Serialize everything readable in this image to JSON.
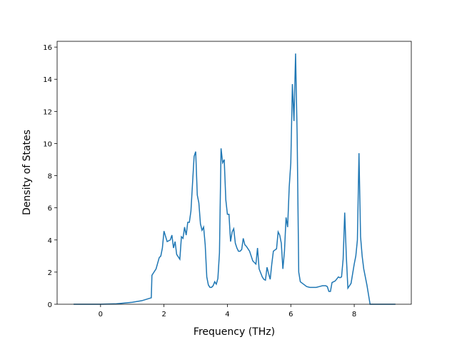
{
  "chart_data": {
    "type": "line",
    "xlabel": "Frequency (THz)",
    "ylabel": "Density of States",
    "color": "#1f77b4",
    "x": [
      -0.85,
      0,
      0.5,
      1.0,
      1.3,
      1.6,
      1.62,
      1.75,
      1.85,
      1.9,
      1.95,
      2.0,
      2.1,
      2.2,
      2.25,
      2.3,
      2.35,
      2.4,
      2.5,
      2.55,
      2.6,
      2.65,
      2.7,
      2.75,
      2.8,
      2.85,
      2.9,
      2.95,
      3.0,
      3.05,
      3.1,
      3.15,
      3.2,
      3.25,
      3.3,
      3.35,
      3.4,
      3.45,
      3.5,
      3.55,
      3.6,
      3.65,
      3.7,
      3.75,
      3.8,
      3.85,
      3.9,
      3.95,
      4.0,
      4.05,
      4.1,
      4.15,
      4.2,
      4.25,
      4.3,
      4.35,
      4.4,
      4.45,
      4.5,
      4.55,
      4.6,
      4.7,
      4.8,
      4.9,
      4.95,
      5.0,
      5.1,
      5.15,
      5.2,
      5.25,
      5.3,
      5.35,
      5.4,
      5.45,
      5.55,
      5.6,
      5.65,
      5.7,
      5.75,
      5.8,
      5.85,
      5.9,
      5.95,
      6.0,
      6.05,
      6.1,
      6.15,
      6.2,
      6.25,
      6.3,
      6.4,
      6.5,
      6.6,
      6.8,
      6.9,
      7.0,
      7.1,
      7.15,
      7.2,
      7.25,
      7.3,
      7.4,
      7.5,
      7.55,
      7.6,
      7.65,
      7.7,
      7.75,
      7.8,
      7.9,
      8.0,
      8.05,
      8.1,
      8.15,
      8.2,
      8.25,
      8.3,
      8.4,
      8.5,
      9.3
    ],
    "values": [
      0,
      0,
      0.03,
      0.12,
      0.22,
      0.4,
      1.8,
      2.2,
      2.9,
      3.0,
      3.5,
      4.55,
      3.9,
      4.0,
      4.3,
      3.5,
      3.9,
      3.1,
      2.8,
      4.2,
      4.1,
      4.8,
      4.3,
      5.1,
      5.1,
      5.8,
      7.5,
      9.2,
      9.5,
      6.8,
      6.3,
      5.0,
      4.6,
      4.8,
      3.7,
      1.7,
      1.2,
      1.05,
      1.05,
      1.15,
      1.4,
      1.25,
      1.6,
      3.2,
      9.7,
      8.8,
      9.0,
      6.5,
      5.6,
      5.6,
      3.9,
      4.5,
      4.7,
      3.8,
      3.5,
      3.3,
      3.3,
      3.4,
      4.1,
      3.7,
      3.6,
      3.3,
      2.7,
      2.5,
      3.5,
      2.2,
      1.7,
      1.55,
      1.5,
      2.3,
      1.9,
      1.55,
      2.5,
      3.3,
      3.45,
      4.5,
      4.3,
      3.8,
      2.2,
      3.3,
      5.4,
      4.8,
      7.3,
      8.8,
      13.7,
      11.4,
      15.6,
      10.5,
      2.0,
      1.4,
      1.25,
      1.1,
      1.05,
      1.05,
      1.1,
      1.15,
      1.15,
      1.1,
      0.8,
      0.8,
      1.35,
      1.45,
      1.7,
      1.65,
      1.7,
      2.8,
      5.7,
      3.0,
      1.0,
      1.3,
      2.5,
      3.0,
      4.0,
      9.4,
      4.2,
      3.0,
      2.2,
      1.2,
      0,
      0
    ],
    "xlim": [
      -1.37,
      9.8
    ],
    "ylim": [
      0,
      16.36
    ],
    "xticks": [
      0,
      2,
      4,
      6,
      8
    ],
    "yticks": [
      0,
      2,
      4,
      6,
      8,
      10,
      12,
      14,
      16
    ]
  }
}
